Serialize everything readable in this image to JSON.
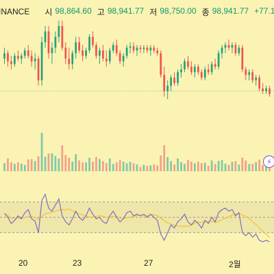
{
  "header": {
    "exchange": "INANCE",
    "open_label": "시",
    "open_value": "98,864.60",
    "high_label": "고",
    "high_value": "98,941.77",
    "low_label": "저",
    "low_value": "98,750.00",
    "close_label": "종",
    "close_value": "98,941.77",
    "change_value": "+77.1",
    "live_dot_color": "#25a55a"
  },
  "x_axis": {
    "ticks": [
      "20",
      "23",
      "27",
      "2월"
    ]
  },
  "colors": {
    "up": "#26a17b",
    "down": "#ef5350",
    "volume_up": "#7ec9a8",
    "volume_down": "#f2a08a",
    "rsi_line": "#7b6fc4",
    "rsi_ma": "#f1c232",
    "background": "#fbf3b3"
  },
  "bolt_icon": "lightning-bolt-icon",
  "chart_data": {
    "type": "candlestick",
    "candles": [
      {
        "o": 100,
        "h": 104,
        "l": 98,
        "c": 102
      },
      {
        "o": 102,
        "h": 103,
        "l": 97,
        "c": 99
      },
      {
        "o": 99,
        "h": 101,
        "l": 96,
        "c": 98
      },
      {
        "o": 98,
        "h": 102,
        "l": 97,
        "c": 101
      },
      {
        "o": 101,
        "h": 103,
        "l": 99,
        "c": 100
      },
      {
        "o": 100,
        "h": 102,
        "l": 98,
        "c": 101
      },
      {
        "o": 101,
        "h": 104,
        "l": 100,
        "c": 103
      },
      {
        "o": 103,
        "h": 105,
        "l": 100,
        "c": 101
      },
      {
        "o": 101,
        "h": 103,
        "l": 97,
        "c": 99
      },
      {
        "o": 99,
        "h": 102,
        "l": 96,
        "c": 100
      },
      {
        "o": 100,
        "h": 101,
        "l": 90,
        "c": 92
      },
      {
        "o": 92,
        "h": 108,
        "l": 90,
        "c": 106
      },
      {
        "o": 106,
        "h": 112,
        "l": 104,
        "c": 110
      },
      {
        "o": 110,
        "h": 112,
        "l": 100,
        "c": 102
      },
      {
        "o": 102,
        "h": 106,
        "l": 98,
        "c": 104
      },
      {
        "o": 104,
        "h": 110,
        "l": 102,
        "c": 108
      },
      {
        "o": 108,
        "h": 114,
        "l": 106,
        "c": 112
      },
      {
        "o": 112,
        "h": 114,
        "l": 103,
        "c": 104
      },
      {
        "o": 104,
        "h": 106,
        "l": 98,
        "c": 100
      },
      {
        "o": 100,
        "h": 104,
        "l": 96,
        "c": 98
      },
      {
        "o": 98,
        "h": 103,
        "l": 96,
        "c": 102
      },
      {
        "o": 102,
        "h": 108,
        "l": 100,
        "c": 106
      },
      {
        "o": 106,
        "h": 108,
        "l": 102,
        "c": 103
      },
      {
        "o": 103,
        "h": 105,
        "l": 99,
        "c": 101
      },
      {
        "o": 101,
        "h": 104,
        "l": 100,
        "c": 103
      },
      {
        "o": 103,
        "h": 109,
        "l": 102,
        "c": 108
      },
      {
        "o": 108,
        "h": 110,
        "l": 104,
        "c": 105
      },
      {
        "o": 105,
        "h": 106,
        "l": 100,
        "c": 101
      },
      {
        "o": 101,
        "h": 104,
        "l": 98,
        "c": 103
      },
      {
        "o": 103,
        "h": 105,
        "l": 99,
        "c": 100
      },
      {
        "o": 100,
        "h": 103,
        "l": 97,
        "c": 99
      },
      {
        "o": 99,
        "h": 104,
        "l": 98,
        "c": 103
      },
      {
        "o": 103,
        "h": 106,
        "l": 102,
        "c": 105
      },
      {
        "o": 105,
        "h": 107,
        "l": 101,
        "c": 102
      },
      {
        "o": 102,
        "h": 103,
        "l": 98,
        "c": 99
      },
      {
        "o": 99,
        "h": 102,
        "l": 97,
        "c": 101
      },
      {
        "o": 101,
        "h": 105,
        "l": 100,
        "c": 104
      },
      {
        "o": 104,
        "h": 106,
        "l": 102,
        "c": 104.5
      },
      {
        "o": 104.5,
        "h": 106,
        "l": 102,
        "c": 103
      },
      {
        "o": 103,
        "h": 105,
        "l": 101,
        "c": 104
      },
      {
        "o": 104,
        "h": 105,
        "l": 102,
        "c": 103.5
      },
      {
        "o": 103.5,
        "h": 105,
        "l": 102,
        "c": 104
      },
      {
        "o": 104,
        "h": 105,
        "l": 102,
        "c": 103
      },
      {
        "o": 103,
        "h": 105,
        "l": 101,
        "c": 104
      },
      {
        "o": 104,
        "h": 105,
        "l": 102,
        "c": 103
      },
      {
        "o": 103,
        "h": 104,
        "l": 101,
        "c": 102
      },
      {
        "o": 102,
        "h": 103,
        "l": 93,
        "c": 94
      },
      {
        "o": 94,
        "h": 97,
        "l": 86,
        "c": 88
      },
      {
        "o": 88,
        "h": 92,
        "l": 85,
        "c": 90
      },
      {
        "o": 90,
        "h": 94,
        "l": 88,
        "c": 93
      },
      {
        "o": 93,
        "h": 95,
        "l": 90,
        "c": 91
      },
      {
        "o": 91,
        "h": 96,
        "l": 90,
        "c": 95
      },
      {
        "o": 95,
        "h": 98,
        "l": 93,
        "c": 96
      },
      {
        "o": 96,
        "h": 100,
        "l": 95,
        "c": 99
      },
      {
        "o": 99,
        "h": 101,
        "l": 96,
        "c": 97
      },
      {
        "o": 97,
        "h": 99,
        "l": 94,
        "c": 95
      },
      {
        "o": 95,
        "h": 98,
        "l": 93,
        "c": 97
      },
      {
        "o": 97,
        "h": 98,
        "l": 94,
        "c": 95
      },
      {
        "o": 95,
        "h": 96,
        "l": 92,
        "c": 93
      },
      {
        "o": 93,
        "h": 97,
        "l": 92,
        "c": 96
      },
      {
        "o": 96,
        "h": 98,
        "l": 94,
        "c": 95
      },
      {
        "o": 95,
        "h": 99,
        "l": 94,
        "c": 98
      },
      {
        "o": 98,
        "h": 100,
        "l": 96,
        "c": 97
      },
      {
        "o": 97,
        "h": 103,
        "l": 96,
        "c": 102
      },
      {
        "o": 102,
        "h": 105,
        "l": 100,
        "c": 104
      },
      {
        "o": 104,
        "h": 106,
        "l": 102,
        "c": 105
      },
      {
        "o": 105,
        "h": 107,
        "l": 103,
        "c": 104
      },
      {
        "o": 104,
        "h": 106,
        "l": 102,
        "c": 105
      },
      {
        "o": 105,
        "h": 106,
        "l": 101,
        "c": 102
      },
      {
        "o": 102,
        "h": 105,
        "l": 101,
        "c": 104
      },
      {
        "o": 104,
        "h": 105,
        "l": 95,
        "c": 96
      },
      {
        "o": 96,
        "h": 97,
        "l": 92,
        "c": 94
      },
      {
        "o": 94,
        "h": 96,
        "l": 92,
        "c": 95
      },
      {
        "o": 95,
        "h": 96,
        "l": 91,
        "c": 92
      },
      {
        "o": 92,
        "h": 94,
        "l": 90,
        "c": 93
      },
      {
        "o": 93,
        "h": 94,
        "l": 88,
        "c": 89
      },
      {
        "o": 89,
        "h": 91,
        "l": 87,
        "c": 88
      },
      {
        "o": 88,
        "h": 90,
        "l": 87,
        "c": 89
      },
      {
        "o": 89,
        "h": 90,
        "l": 86,
        "c": 87
      }
    ],
    "volume_note": "volume bars",
    "rsi_values": [
      55,
      50,
      42,
      46,
      52,
      48,
      56,
      60,
      48,
      45,
      30,
      72,
      80,
      62,
      58,
      66,
      74,
      52,
      44,
      40,
      48,
      58,
      50,
      46,
      52,
      62,
      54,
      48,
      50,
      44,
      42,
      52,
      58,
      50,
      44,
      48,
      56,
      58,
      52,
      54,
      52,
      54,
      50,
      54,
      50,
      46,
      28,
      20,
      30,
      40,
      36,
      44,
      48,
      54,
      44,
      40,
      46,
      42,
      36,
      46,
      42,
      50,
      44,
      56,
      60,
      62,
      58,
      60,
      52,
      56,
      30,
      26,
      30,
      24,
      28,
      20,
      18,
      20,
      18
    ],
    "rsi_levels": [
      70,
      50,
      30
    ]
  }
}
